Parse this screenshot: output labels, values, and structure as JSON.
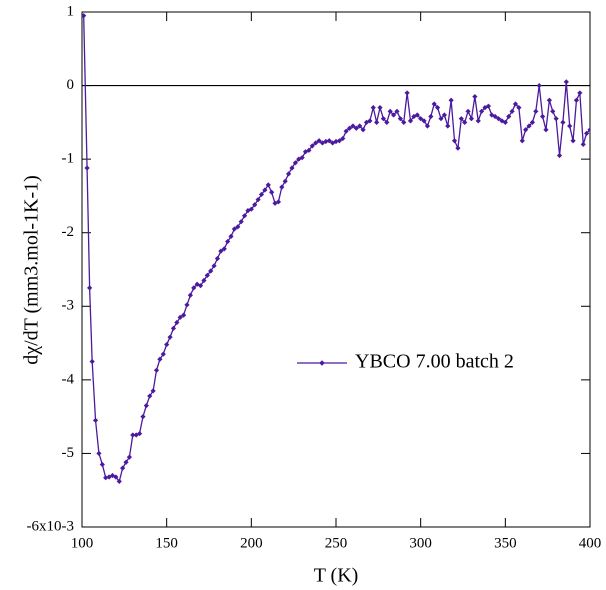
{
  "chart_data": {
    "type": "line",
    "x_label": "T (K)",
    "y_label": "dχ/dT (mm3.mol-1K-1)",
    "xlim": [
      100,
      400
    ],
    "xticks": [
      100,
      150,
      200,
      250,
      300,
      350,
      400
    ],
    "ylim": [
      -6,
      1
    ],
    "yticks": [
      {
        "value": -6,
        "label": "-6x10-3"
      },
      -5,
      -4,
      -3,
      -2,
      -1,
      0,
      1
    ],
    "zero_line": true,
    "grid": false,
    "legend": "right",
    "x": [
      101,
      103,
      104.5,
      106,
      108,
      110,
      112,
      114,
      116,
      118,
      120,
      122,
      124,
      126,
      128,
      130,
      132,
      134,
      136,
      138,
      140,
      142,
      144,
      146,
      148,
      150,
      152,
      154,
      156,
      158,
      160,
      162,
      164,
      166,
      168,
      170,
      172,
      174,
      176,
      178,
      180,
      182,
      184,
      186,
      188,
      190,
      192,
      194,
      196,
      198,
      200,
      202,
      204,
      206,
      208,
      210,
      212,
      214,
      216,
      218,
      220,
      222,
      224,
      226,
      228,
      230,
      232,
      234,
      236,
      238,
      240,
      242,
      244,
      246,
      248,
      250,
      252,
      254,
      256,
      258,
      260,
      262,
      264,
      266,
      268,
      270,
      272,
      274,
      276,
      278,
      280,
      282,
      284,
      286,
      288,
      290,
      292,
      294,
      296,
      298,
      300,
      302,
      304,
      306,
      308,
      310,
      312,
      314,
      316,
      318,
      320,
      322,
      324,
      326,
      328,
      330,
      332,
      334,
      336,
      338,
      340,
      342,
      344,
      346,
      348,
      350,
      352,
      354,
      356,
      358,
      360,
      362,
      364,
      366,
      368,
      370,
      372,
      374,
      376,
      378,
      380,
      382,
      384,
      386,
      388,
      390,
      392,
      394,
      396,
      398,
      400
    ],
    "series": [
      {
        "name": "YBCO 7.00 batch 2",
        "color": "#4b1a9e",
        "values": [
          0.95,
          -1.12,
          -2.75,
          -3.75,
          -4.55,
          -5.0,
          -5.15,
          -5.33,
          -5.32,
          -5.3,
          -5.32,
          -5.38,
          -5.2,
          -5.12,
          -5.05,
          -4.75,
          -4.75,
          -4.73,
          -4.5,
          -4.35,
          -4.22,
          -4.15,
          -3.87,
          -3.72,
          -3.65,
          -3.52,
          -3.42,
          -3.3,
          -3.22,
          -3.15,
          -3.12,
          -2.98,
          -2.85,
          -2.75,
          -2.7,
          -2.72,
          -2.65,
          -2.58,
          -2.52,
          -2.45,
          -2.35,
          -2.25,
          -2.22,
          -2.12,
          -2.05,
          -1.95,
          -1.92,
          -1.85,
          -1.77,
          -1.7,
          -1.68,
          -1.62,
          -1.55,
          -1.48,
          -1.42,
          -1.35,
          -1.45,
          -1.6,
          -1.58,
          -1.38,
          -1.3,
          -1.2,
          -1.12,
          -1.05,
          -1.0,
          -0.98,
          -0.9,
          -0.88,
          -0.82,
          -0.78,
          -0.75,
          -0.78,
          -0.76,
          -0.75,
          -0.78,
          -0.76,
          -0.75,
          -0.72,
          -0.62,
          -0.58,
          -0.55,
          -0.58,
          -0.55,
          -0.6,
          -0.5,
          -0.48,
          -0.3,
          -0.5,
          -0.3,
          -0.45,
          -0.5,
          -0.35,
          -0.4,
          -0.35,
          -0.45,
          -0.5,
          -0.1,
          -0.48,
          -0.42,
          -0.4,
          -0.45,
          -0.48,
          -0.55,
          -0.42,
          -0.25,
          -0.3,
          -0.45,
          -0.4,
          -0.55,
          -0.2,
          -0.75,
          -0.85,
          -0.45,
          -0.5,
          -0.35,
          -0.45,
          -0.15,
          -0.48,
          -0.35,
          -0.3,
          -0.28,
          -0.4,
          -0.42,
          -0.45,
          -0.48,
          -0.5,
          -0.42,
          -0.35,
          -0.25,
          -0.3,
          -0.75,
          -0.6,
          -0.55,
          -0.5,
          -0.35,
          0.0,
          -0.42,
          -0.6,
          -0.2,
          -0.35,
          -0.45,
          -0.95,
          -0.5,
          0.05,
          -0.55,
          -0.75,
          -0.2,
          -0.1,
          -0.8,
          -0.65,
          -0.6
        ]
      }
    ]
  }
}
